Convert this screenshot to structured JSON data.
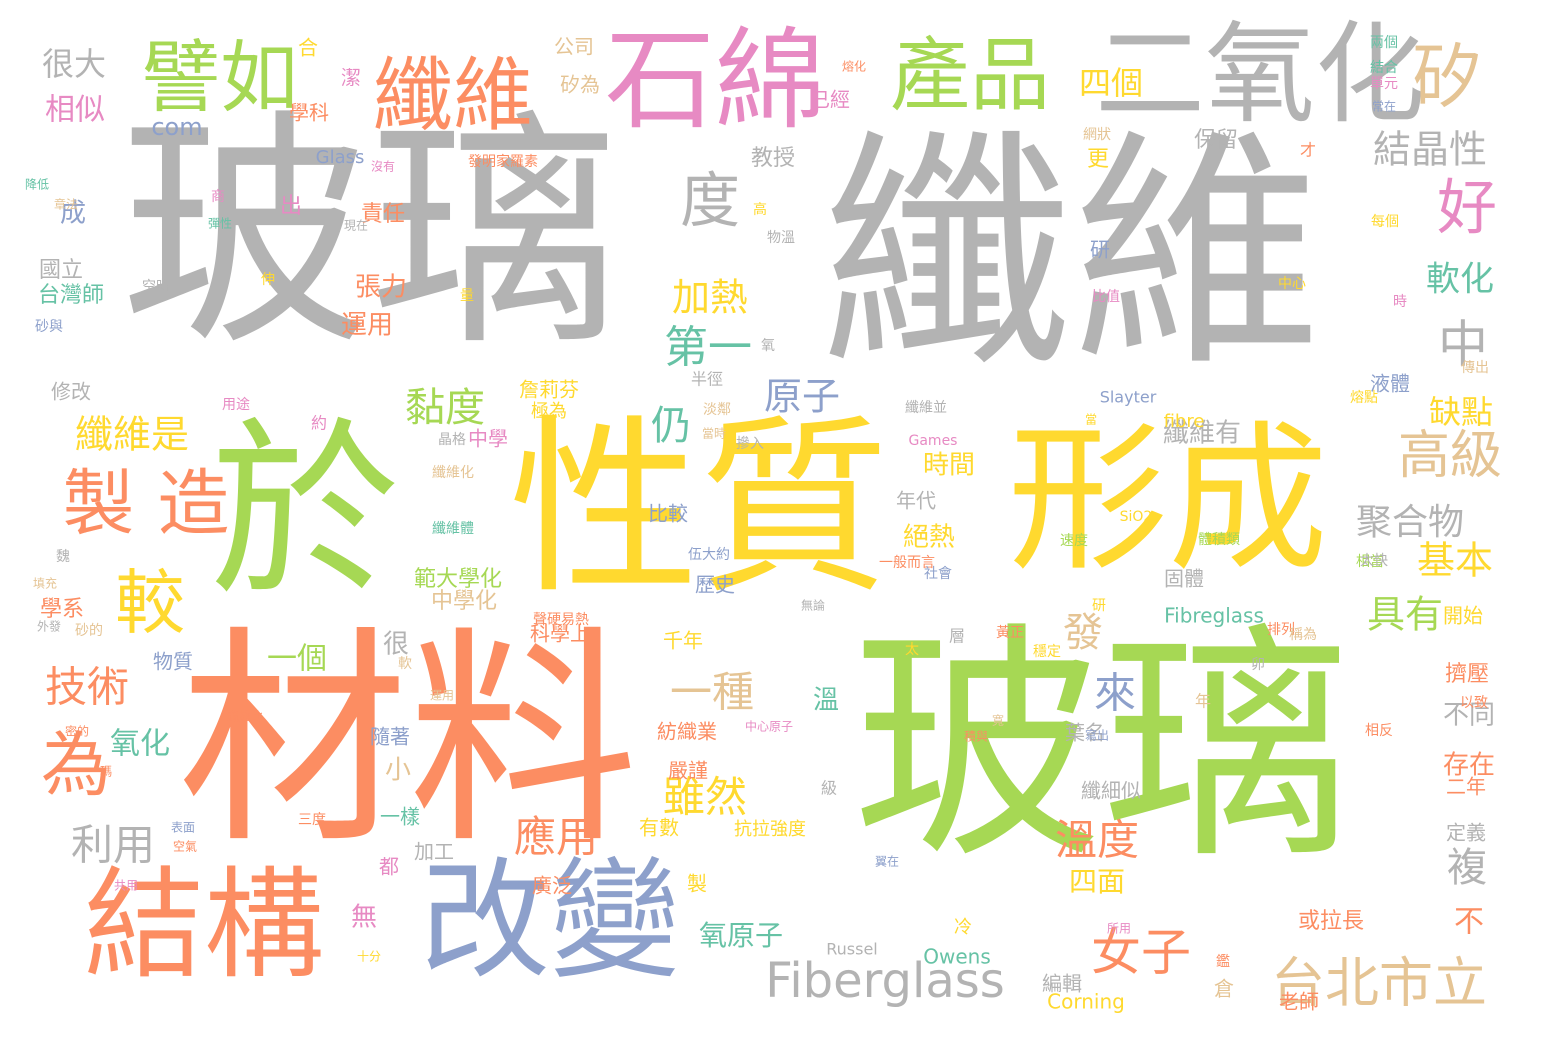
{
  "colors": {
    "gray": "#b3b3b3",
    "green": "#a6d854",
    "yellow": "#ffd92f",
    "orange": "#fc8d62",
    "blue": "#8da0cb",
    "pink": "#e78ac3",
    "tan": "#e5c494",
    "teal": "#66c2a5"
  },
  "words": [
    {
      "text": "玻璃",
      "color": "gray",
      "orientation": "horizontal"
    },
    {
      "text": "纖維",
      "color": "gray",
      "orientation": "horizontal"
    },
    {
      "text": "玻璃",
      "color": "green",
      "orientation": "horizontal"
    },
    {
      "text": "材料",
      "color": "orange",
      "orientation": "horizontal"
    },
    {
      "text": "性質",
      "color": "yellow",
      "orientation": "horizontal"
    },
    {
      "text": "形成",
      "color": "yellow",
      "orientation": "horizontal"
    },
    {
      "text": "於",
      "color": "green",
      "orientation": "horizontal"
    },
    {
      "text": "改變",
      "color": "blue",
      "orientation": "horizontal"
    },
    {
      "text": "結構",
      "color": "orange",
      "orientation": "horizontal"
    },
    {
      "text": "石綿",
      "color": "pink",
      "orientation": "horizontal"
    },
    {
      "text": "二氧化",
      "color": "gray",
      "orientation": "horizontal"
    },
    {
      "text": "纖維",
      "color": "orange",
      "orientation": "horizontal"
    },
    {
      "text": "產品",
      "color": "green",
      "orientation": "horizontal"
    },
    {
      "text": "譬如",
      "color": "green",
      "orientation": "horizontal"
    },
    {
      "text": "矽",
      "color": "tan",
      "orientation": "horizontal"
    },
    {
      "text": "製 造",
      "color": "orange",
      "orientation": "horizontal"
    },
    {
      "text": "度",
      "color": "gray",
      "orientation": "horizontal"
    },
    {
      "text": "好",
      "color": "pink",
      "orientation": "horizontal"
    },
    {
      "text": "中",
      "color": "gray",
      "orientation": "horizontal"
    },
    {
      "text": "較",
      "color": "yellow",
      "orientation": "horizontal"
    },
    {
      "text": "為",
      "color": "orange",
      "orientation": "horizontal"
    },
    {
      "text": "Fiberglass",
      "color": "gray",
      "orientation": "horizontal"
    },
    {
      "text": "台北市立",
      "color": "tan",
      "orientation": "horizontal"
    },
    {
      "text": "高級",
      "color": "tan",
      "orientation": "horizontal"
    },
    {
      "text": "女子",
      "color": "orange",
      "orientation": "horizontal"
    },
    {
      "text": "技術",
      "color": "orange",
      "orientation": "horizontal"
    },
    {
      "text": "利用",
      "color": "gray",
      "orientation": "horizontal"
    },
    {
      "text": "應用",
      "color": "orange",
      "orientation": "horizontal"
    },
    {
      "text": "溫度",
      "color": "orange",
      "orientation": "horizontal"
    },
    {
      "text": "雖然",
      "color": "yellow",
      "orientation": "horizontal"
    },
    {
      "text": "一種",
      "color": "tan",
      "orientation": "horizontal"
    },
    {
      "text": "纖維是",
      "color": "yellow",
      "orientation": "horizontal"
    },
    {
      "text": "黏度",
      "color": "green",
      "orientation": "horizontal"
    },
    {
      "text": "四個",
      "color": "yellow",
      "orientation": "horizontal"
    },
    {
      "text": "結晶性",
      "color": "gray",
      "orientation": "horizontal"
    },
    {
      "text": "軟化",
      "color": "teal",
      "orientation": "horizontal"
    },
    {
      "text": "聚合物",
      "color": "gray",
      "orientation": "horizontal"
    },
    {
      "text": "基本",
      "color": "yellow",
      "orientation": "horizontal"
    },
    {
      "text": "具有",
      "color": "green",
      "orientation": "horizontal"
    },
    {
      "text": "複",
      "color": "gray",
      "orientation": "horizontal"
    },
    {
      "text": "第一",
      "color": "teal",
      "orientation": "horizontal"
    },
    {
      "text": "原子",
      "color": "blue",
      "orientation": "horizontal"
    },
    {
      "text": "加熱",
      "color": "yellow",
      "orientation": "horizontal"
    },
    {
      "text": "來",
      "color": "blue",
      "orientation": "horizontal"
    },
    {
      "text": "發",
      "color": "tan",
      "orientation": "horizontal"
    },
    {
      "text": "仍",
      "color": "teal",
      "orientation": "horizontal"
    },
    {
      "text": "一個",
      "color": "green",
      "orientation": "horizontal"
    },
    {
      "text": "很大",
      "color": "gray",
      "orientation": "horizontal"
    },
    {
      "text": "相似",
      "color": "pink",
      "orientation": "horizontal"
    },
    {
      "text": "com",
      "color": "blue",
      "orientation": "horizontal"
    },
    {
      "text": "缺點",
      "color": "yellow",
      "orientation": "horizontal"
    },
    {
      "text": "氧化",
      "color": "teal",
      "orientation": "horizontal"
    },
    {
      "text": "四面",
      "color": "yellow",
      "orientation": "horizontal"
    },
    {
      "text": "氧原子",
      "color": "teal",
      "orientation": "horizontal"
    },
    {
      "text": "張力",
      "color": "orange",
      "orientation": "horizontal"
    },
    {
      "text": "運用",
      "color": "orange",
      "orientation": "horizontal"
    },
    {
      "text": "時間",
      "color": "yellow",
      "orientation": "horizontal"
    },
    {
      "text": "絕熱",
      "color": "yellow",
      "orientation": "horizontal"
    },
    {
      "text": "纖維有",
      "color": "gray",
      "orientation": "horizontal"
    },
    {
      "text": "存在",
      "color": "orange",
      "orientation": "horizontal"
    },
    {
      "text": "不同",
      "color": "gray",
      "orientation": "horizontal"
    },
    {
      "text": "不",
      "color": "orange",
      "orientation": "horizontal"
    },
    {
      "text": "或拉長",
      "color": "orange",
      "orientation": "horizontal"
    },
    {
      "text": "老師",
      "color": "orange",
      "orientation": "horizontal"
    },
    {
      "text": "Corning",
      "color": "yellow",
      "orientation": "horizontal"
    },
    {
      "text": "Owens",
      "color": "teal",
      "orientation": "horizontal"
    },
    {
      "text": "Fibreglass",
      "color": "teal",
      "orientation": "horizontal"
    },
    {
      "text": "fibre",
      "color": "yellow",
      "orientation": "horizontal"
    },
    {
      "text": "Glass",
      "color": "blue",
      "orientation": "horizontal"
    },
    {
      "text": "Slayter",
      "color": "blue",
      "orientation": "horizontal"
    },
    {
      "text": "Russel",
      "color": "gray",
      "orientation": "horizontal"
    },
    {
      "text": "Games",
      "color": "pink",
      "orientation": "horizontal"
    },
    {
      "text": "SiO2",
      "color": "yellow",
      "orientation": "horizontal"
    },
    {
      "text": "無",
      "color": "pink",
      "orientation": "horizontal"
    },
    {
      "text": "小",
      "color": "tan",
      "orientation": "horizontal"
    },
    {
      "text": "很",
      "color": "gray",
      "orientation": "horizontal"
    },
    {
      "text": "溫",
      "color": "teal",
      "orientation": "horizontal"
    },
    {
      "text": "成",
      "color": "blue",
      "orientation": "horizontal"
    },
    {
      "text": "出",
      "color": "pink",
      "orientation": "horizontal"
    },
    {
      "text": "更",
      "color": "yellow",
      "orientation": "horizontal"
    },
    {
      "text": "教授",
      "color": "gray",
      "orientation": "horizontal"
    },
    {
      "text": "保留",
      "color": "gray",
      "orientation": "horizontal"
    },
    {
      "text": "責任",
      "color": "orange",
      "orientation": "horizontal"
    },
    {
      "text": "國立",
      "color": "gray",
      "orientation": "horizontal"
    },
    {
      "text": "台灣師",
      "color": "teal",
      "orientation": "horizontal"
    },
    {
      "text": "修改",
      "color": "gray",
      "orientation": "horizontal"
    },
    {
      "text": "學系",
      "color": "orange",
      "orientation": "horizontal"
    },
    {
      "text": "物質",
      "color": "blue",
      "orientation": "horizontal"
    },
    {
      "text": "比較",
      "color": "blue",
      "orientation": "horizontal"
    },
    {
      "text": "歷史",
      "color": "blue",
      "orientation": "horizontal"
    },
    {
      "text": "千年",
      "color": "yellow",
      "orientation": "horizontal"
    },
    {
      "text": "年代",
      "color": "gray",
      "orientation": "horizontal"
    },
    {
      "text": "固體",
      "color": "gray",
      "orientation": "horizontal"
    },
    {
      "text": "開始",
      "color": "yellow",
      "orientation": "horizontal"
    },
    {
      "text": "擠壓",
      "color": "orange",
      "orientation": "horizontal"
    },
    {
      "text": "範大學化",
      "color": "green",
      "orientation": "horizontal"
    },
    {
      "text": "中學化",
      "color": "tan",
      "orientation": "horizontal"
    },
    {
      "text": "中學",
      "color": "pink",
      "orientation": "horizontal"
    },
    {
      "text": "科學上",
      "color": "orange",
      "orientation": "horizontal"
    },
    {
      "text": "紡織業",
      "color": "orange",
      "orientation": "horizontal"
    },
    {
      "text": "嚴謹",
      "color": "orange",
      "orientation": "horizontal"
    },
    {
      "text": "有數",
      "color": "yellow",
      "orientation": "horizontal"
    },
    {
      "text": "抗拉強度",
      "color": "yellow",
      "orientation": "horizontal"
    },
    {
      "text": "一樣",
      "color": "teal",
      "orientation": "horizontal"
    },
    {
      "text": "加工",
      "color": "gray",
      "orientation": "horizontal"
    },
    {
      "text": "都",
      "color": "pink",
      "orientation": "horizontal"
    },
    {
      "text": "隨著",
      "color": "blue",
      "orientation": "horizontal"
    },
    {
      "text": "葉名",
      "color": "gray",
      "orientation": "horizontal"
    },
    {
      "text": "纖細似",
      "color": "gray",
      "orientation": "horizontal"
    },
    {
      "text": "廣泛",
      "color": "orange",
      "orientation": "horizontal"
    },
    {
      "text": "編輯",
      "color": "gray",
      "orientation": "horizontal"
    },
    {
      "text": "倉",
      "color": "tan",
      "orientation": "horizontal"
    },
    {
      "text": "定義",
      "color": "gray",
      "orientation": "horizontal"
    },
    {
      "text": "二年",
      "color": "orange",
      "orientation": "horizontal"
    },
    {
      "text": "液體",
      "color": "blue",
      "orientation": "horizontal"
    },
    {
      "text": "研",
      "color": "blue",
      "orientation": "horizontal"
    },
    {
      "text": "公司",
      "color": "tan",
      "orientation": "horizontal"
    },
    {
      "text": "矽為",
      "color": "tan",
      "orientation": "horizontal"
    },
    {
      "text": "已經",
      "color": "pink",
      "orientation": "horizontal"
    },
    {
      "text": "合",
      "color": "yellow",
      "orientation": "horizontal"
    },
    {
      "text": "學科",
      "color": "orange",
      "orientation": "horizontal"
    },
    {
      "text": "潔",
      "color": "pink",
      "orientation": "horizontal"
    },
    {
      "text": "詹莉芬",
      "color": "yellow",
      "orientation": "horizontal"
    },
    {
      "text": "極為",
      "color": "yellow",
      "orientation": "horizontal"
    },
    {
      "text": "纖維並",
      "color": "gray",
      "orientation": "horizontal"
    },
    {
      "text": "半徑",
      "color": "gray",
      "orientation": "horizontal"
    },
    {
      "text": "約",
      "color": "pink",
      "orientation": "horizontal"
    },
    {
      "text": "層",
      "color": "gray",
      "orientation": "horizontal"
    },
    {
      "text": "級",
      "color": "gray",
      "orientation": "horizontal"
    },
    {
      "text": "製",
      "color": "yellow",
      "orientation": "horizontal"
    },
    {
      "text": "冷",
      "color": "yellow",
      "orientation": "horizontal"
    },
    {
      "text": "年",
      "color": "tan",
      "orientation": "horizontal"
    },
    {
      "text": "才",
      "color": "orange",
      "orientation": "horizontal"
    },
    {
      "text": "中心",
      "color": "yellow",
      "orientation": "horizontal"
    },
    {
      "text": "比值",
      "color": "pink",
      "orientation": "horizontal"
    },
    {
      "text": "時",
      "color": "pink",
      "orientation": "horizontal"
    },
    {
      "text": "研",
      "color": "yellow",
      "orientation": "horizontal"
    },
    {
      "text": "高",
      "color": "yellow",
      "orientation": "horizontal"
    },
    {
      "text": "每個",
      "color": "yellow",
      "orientation": "horizontal"
    },
    {
      "text": "熔點",
      "color": "yellow",
      "orientation": "horizontal"
    },
    {
      "text": "傳出",
      "color": "tan",
      "orientation": "horizontal"
    },
    {
      "text": "速度",
      "color": "green",
      "orientation": "horizontal"
    },
    {
      "text": "相當",
      "color": "green",
      "orientation": "horizontal"
    },
    {
      "text": "排列",
      "color": "orange",
      "orientation": "horizontal"
    },
    {
      "text": "相反",
      "color": "orange",
      "orientation": "horizontal"
    },
    {
      "text": "以致",
      "color": "orange",
      "orientation": "horizontal"
    },
    {
      "text": "稱為",
      "color": "tan",
      "orientation": "horizontal"
    },
    {
      "text": "太快",
      "color": "gray",
      "orientation": "horizontal"
    },
    {
      "text": "表面",
      "color": "blue",
      "orientation": "horizontal"
    },
    {
      "text": "空氣",
      "color": "orange",
      "orientation": "horizontal"
    },
    {
      "text": "共用",
      "color": "pink",
      "orientation": "horizontal"
    },
    {
      "text": "十分",
      "color": "yellow",
      "orientation": "horizontal"
    },
    {
      "text": "三度",
      "color": "orange",
      "orientation": "horizontal"
    },
    {
      "text": "纖維比",
      "color": "orange",
      "orientation": "horizontal"
    },
    {
      "text": "密的",
      "color": "orange",
      "orientation": "horizontal"
    },
    {
      "text": "瑪",
      "color": "orange",
      "orientation": "horizontal"
    },
    {
      "text": "砂的",
      "color": "tan",
      "orientation": "horizontal"
    },
    {
      "text": "填充",
      "color": "tan",
      "orientation": "horizontal"
    },
    {
      "text": "外發",
      "color": "gray",
      "orientation": "horizontal"
    },
    {
      "text": "魏",
      "color": "gray",
      "orientation": "horizontal"
    },
    {
      "text": "空時",
      "color": "gray",
      "orientation": "horizontal"
    },
    {
      "text": "砂與",
      "color": "blue",
      "orientation": "horizontal"
    },
    {
      "text": "伸",
      "color": "yellow",
      "orientation": "horizontal"
    },
    {
      "text": "量",
      "color": "yellow",
      "orientation": "horizontal"
    },
    {
      "text": "彈性",
      "color": "teal",
      "orientation": "horizontal"
    },
    {
      "text": "降低",
      "color": "teal",
      "orientation": "horizontal"
    },
    {
      "text": "章法",
      "color": "tan",
      "orientation": "horizontal"
    },
    {
      "text": "現在",
      "color": "gray",
      "orientation": "horizontal"
    },
    {
      "text": "沒有",
      "color": "pink",
      "orientation": "horizontal"
    },
    {
      "text": "發明家羅素",
      "color": "orange",
      "orientation": "horizontal"
    },
    {
      "text": "網狀",
      "color": "tan",
      "orientation": "horizontal"
    },
    {
      "text": "兩個",
      "color": "teal",
      "orientation": "horizontal"
    },
    {
      "text": "結合",
      "color": "teal",
      "orientation": "horizontal"
    },
    {
      "text": "單元",
      "color": "pink",
      "orientation": "horizontal"
    },
    {
      "text": "常在",
      "color": "blue",
      "orientation": "horizontal"
    },
    {
      "text": "熔化",
      "color": "orange",
      "orientation": "horizontal"
    },
    {
      "text": "伍大約",
      "color": "blue",
      "orientation": "horizontal"
    },
    {
      "text": "當",
      "color": "yellow",
      "orientation": "horizontal"
    },
    {
      "text": "氧",
      "color": "gray",
      "orientation": "horizontal"
    },
    {
      "text": "摻入",
      "color": "gray",
      "orientation": "horizontal"
    },
    {
      "text": "當時",
      "color": "tan",
      "orientation": "horizontal"
    },
    {
      "text": "淡鄰",
      "color": "tan",
      "orientation": "horizontal"
    },
    {
      "text": "纖維化",
      "color": "tan",
      "orientation": "horizontal"
    },
    {
      "text": "纖維體",
      "color": "teal",
      "orientation": "horizontal"
    },
    {
      "text": "體積類",
      "color": "green",
      "orientation": "horizontal"
    },
    {
      "text": "一般而言",
      "color": "orange",
      "orientation": "horizontal"
    },
    {
      "text": "社會",
      "color": "blue",
      "orientation": "horizontal"
    },
    {
      "text": "太",
      "color": "yellow",
      "orientation": "horizontal"
    },
    {
      "text": "卯",
      "color": "gray",
      "orientation": "horizontal"
    },
    {
      "text": "寬",
      "color": "tan",
      "orientation": "horizontal"
    },
    {
      "text": "積與",
      "color": "orange",
      "orientation": "horizontal"
    },
    {
      "text": "寫出",
      "color": "blue",
      "orientation": "horizontal"
    },
    {
      "text": "穩定",
      "color": "yellow",
      "orientation": "horizontal"
    },
    {
      "text": "翼在",
      "color": "blue",
      "orientation": "horizontal"
    },
    {
      "text": "中心原子",
      "color": "pink",
      "orientation": "horizontal"
    },
    {
      "text": "無論",
      "color": "gray",
      "orientation": "horizontal"
    },
    {
      "text": "黃正",
      "color": "orange",
      "orientation": "horizontal"
    },
    {
      "text": "鑑",
      "color": "orange",
      "orientation": "horizontal"
    },
    {
      "text": "所用",
      "color": "pink",
      "orientation": "horizontal"
    },
    {
      "text": "用途",
      "color": "pink",
      "orientation": "horizontal"
    },
    {
      "text": "晶格",
      "color": "gray",
      "orientation": "horizontal"
    },
    {
      "text": "軟",
      "color": "tan",
      "orientation": "horizontal"
    },
    {
      "text": "聲硬易熱",
      "color": "orange",
      "orientation": "horizontal"
    },
    {
      "text": "運用",
      "color": "tan",
      "orientation": "horizontal"
    },
    {
      "text": "商",
      "color": "pink",
      "orientation": "horizontal"
    },
    {
      "text": "物溫",
      "color": "gray",
      "orientation": "horizontal"
    }
  ]
}
